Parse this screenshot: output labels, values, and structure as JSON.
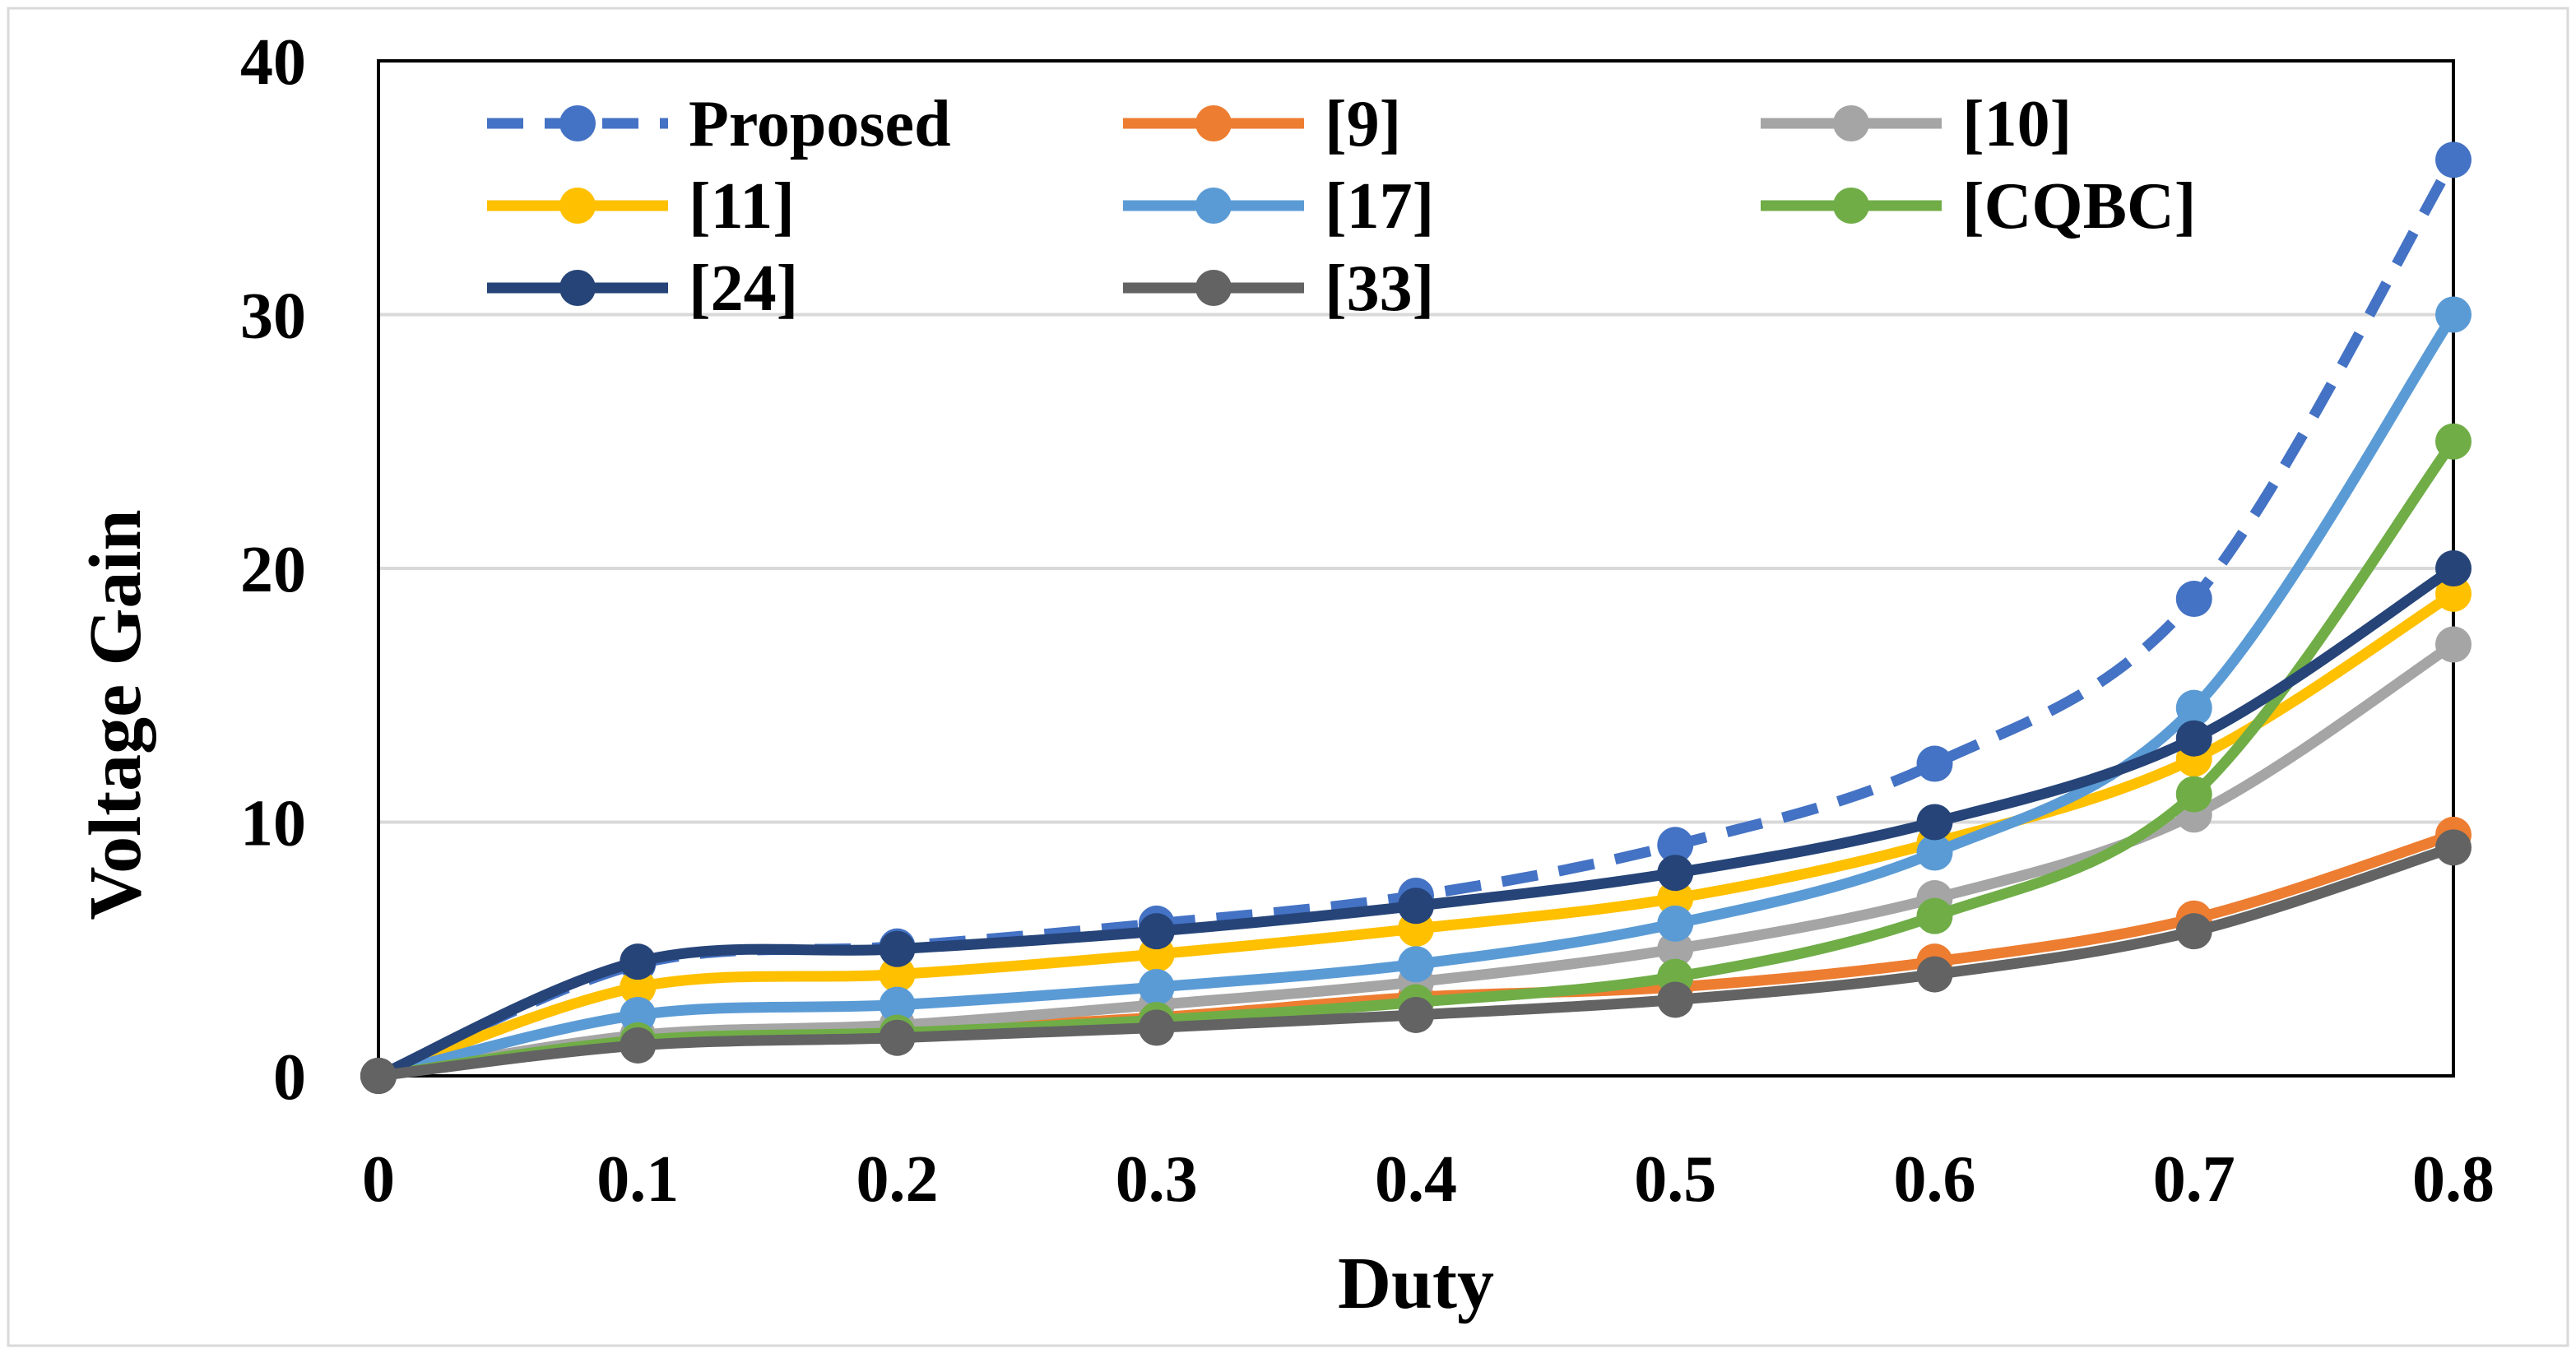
{
  "chart_data": {
    "type": "line",
    "title": "",
    "xlabel": "Duty",
    "ylabel": "Voltage Gain",
    "x": [
      0,
      0.1,
      0.2,
      0.3,
      0.4,
      0.5,
      0.6,
      0.7,
      0.8
    ],
    "x_tick_labels": [
      "0",
      "0.1",
      "0.2",
      "0.3",
      "0.4",
      "0.5",
      "0.6",
      "0.7",
      "0.8"
    ],
    "xlim": [
      0,
      0.8
    ],
    "ylim": [
      0,
      40
    ],
    "y_ticks": [
      0,
      10,
      20,
      30,
      40
    ],
    "y_tick_labels": [
      "0",
      "10",
      "20",
      "30",
      "40"
    ],
    "grid": "horizontal",
    "legend_position": "top",
    "series": [
      {
        "name": "Proposed",
        "color": "#4472C4",
        "dashed": true,
        "values": [
          0,
          4.4,
          5.1,
          6.0,
          7.1,
          9.1,
          12.3,
          18.8,
          36.1
        ]
      },
      {
        "name": "[9]",
        "color": "#ED7D31",
        "dashed": false,
        "values": [
          0,
          1.5,
          1.8,
          2.3,
          3.1,
          3.5,
          4.5,
          6.2,
          9.5
        ]
      },
      {
        "name": "[10]",
        "color": "#A5A5A5",
        "dashed": false,
        "values": [
          0,
          1.6,
          2.0,
          2.8,
          3.7,
          5.0,
          7.0,
          10.3,
          17.0
        ]
      },
      {
        "name": "[11]",
        "color": "#FFC000",
        "dashed": false,
        "values": [
          0,
          3.5,
          4.0,
          4.8,
          5.8,
          7.0,
          9.2,
          12.5,
          19.0
        ]
      },
      {
        "name": "[17]",
        "color": "#5B9BD5",
        "dashed": false,
        "values": [
          0,
          2.4,
          2.8,
          3.5,
          4.4,
          6.0,
          8.8,
          14.5,
          30.0
        ]
      },
      {
        "name": "[CQBC]",
        "color": "#70AD47",
        "dashed": false,
        "values": [
          0,
          1.4,
          1.7,
          2.2,
          2.9,
          3.9,
          6.3,
          11.1,
          25.0
        ]
      },
      {
        "name": "[24]",
        "color": "#264478",
        "dashed": false,
        "values": [
          0,
          4.5,
          5.0,
          5.7,
          6.7,
          8.0,
          10.0,
          13.3,
          20.0
        ]
      },
      {
        "name": "[33]",
        "color": "#636363",
        "dashed": false,
        "values": [
          0,
          1.2,
          1.5,
          1.9,
          2.4,
          3.0,
          4.0,
          5.7,
          9.0
        ]
      }
    ]
  }
}
